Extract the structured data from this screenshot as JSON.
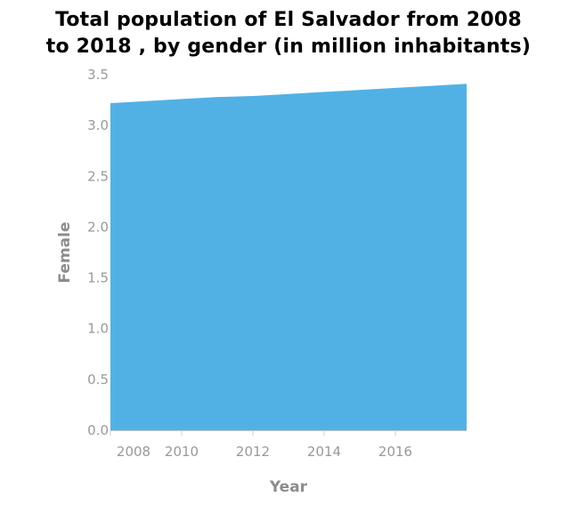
{
  "chart_data": {
    "type": "area",
    "title_line1": "Total population of El Salvador from 2008",
    "title_line2": "to 2018 , by gender (in million inhabitants)",
    "xlabel": "Year",
    "ylabel": "Female",
    "x": [
      2008,
      2009,
      2010,
      2011,
      2012,
      2013,
      2014,
      2015,
      2016,
      2017,
      2018
    ],
    "values": [
      3.22,
      3.24,
      3.26,
      3.28,
      3.29,
      3.31,
      3.33,
      3.35,
      3.37,
      3.39,
      3.41
    ],
    "xlim": [
      2008,
      2018
    ],
    "ylim": [
      0,
      3.5
    ],
    "x_ticks": [
      "2008",
      "2010",
      "2012",
      "2014",
      "2016"
    ],
    "y_ticks": [
      "0.0",
      "0.5",
      "1.0",
      "1.5",
      "2.0",
      "2.5",
      "3.0",
      "3.5"
    ],
    "fill_color": "#52b1e4",
    "grid": false
  }
}
